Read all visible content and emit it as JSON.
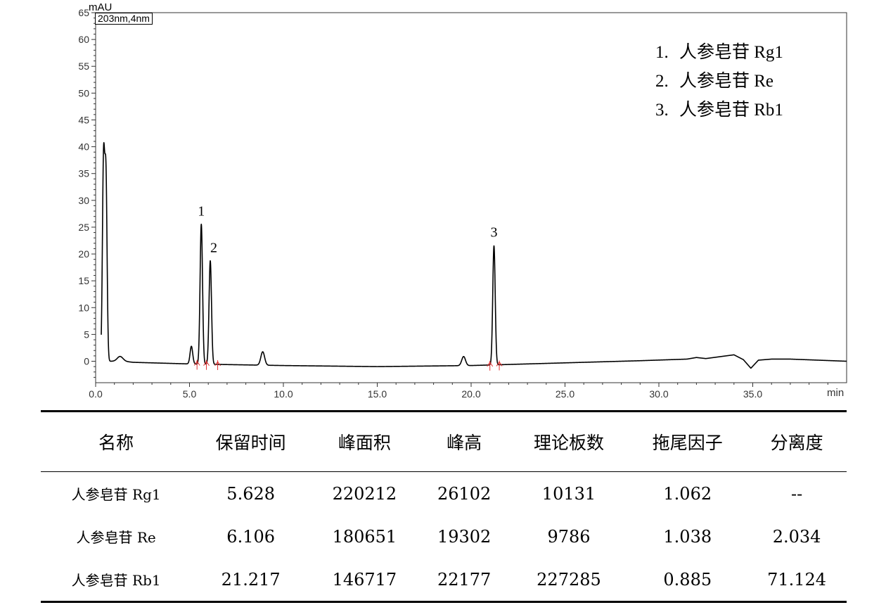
{
  "chart_data": {
    "type": "line",
    "detector": "203nm,4nm",
    "ylabel": "mAU",
    "xlabel": "min",
    "xlim": [
      0,
      40
    ],
    "ylim": [
      -4,
      65
    ],
    "x_ticks": [
      "0.0",
      "5.0",
      "10.0",
      "15.0",
      "20.0",
      "25.0",
      "30.0",
      "35.0"
    ],
    "x_tick_values": [
      0,
      5,
      10,
      15,
      20,
      25,
      30,
      35
    ],
    "y_ticks": [
      0,
      5,
      10,
      15,
      20,
      25,
      30,
      35,
      40,
      45,
      50,
      55,
      60,
      65
    ],
    "series": [
      {
        "baseline": [
          [
            0,
            0
          ],
          [
            1.5,
            0
          ],
          [
            2,
            -0.2
          ],
          [
            5,
            -0.5
          ],
          [
            10,
            -0.8
          ],
          [
            15,
            -1.0
          ],
          [
            20,
            -0.8
          ],
          [
            23,
            -0.5
          ],
          [
            26,
            -0.2
          ],
          [
            29,
            0.1
          ],
          [
            31.5,
            0.4
          ],
          [
            32,
            0.7
          ],
          [
            32.5,
            0.5
          ],
          [
            34,
            1.2
          ],
          [
            34.5,
            0.3
          ],
          [
            34.9,
            -1.3
          ],
          [
            35.3,
            0.2
          ],
          [
            36,
            0.4
          ],
          [
            37,
            0.4
          ],
          [
            38.5,
            0.2
          ],
          [
            40,
            0
          ]
        ],
        "peaks": [
          {
            "rt": 0.42,
            "height": 36.5,
            "width": 0.06
          },
          {
            "rt": 0.55,
            "height": 33.5,
            "width": 0.06
          },
          {
            "rt": 1.3,
            "height": 0.9,
            "width": 0.15
          },
          {
            "rt": 5.1,
            "height": 3.3,
            "width": 0.07
          },
          {
            "rt": 5.628,
            "height": 26.1,
            "width": 0.065
          },
          {
            "rt": 6.106,
            "height": 19.3,
            "width": 0.065
          },
          {
            "rt": 8.9,
            "height": 2.5,
            "width": 0.1
          },
          {
            "rt": 19.6,
            "height": 1.7,
            "width": 0.1
          },
          {
            "rt": 21.217,
            "height": 22.2,
            "width": 0.065
          }
        ]
      }
    ],
    "peak_labels": [
      {
        "label": "1",
        "x": 5.628,
        "y": 26.1
      },
      {
        "label": "2",
        "x": 6.106,
        "y": 19.3
      },
      {
        "label": "3",
        "x": 21.217,
        "y": 22.2
      }
    ],
    "integration_marks": [
      5.4,
      5.9,
      6.5,
      21.0,
      21.5
    ],
    "legend": [
      {
        "num": "1.",
        "name": "人参皂苷 Rg1"
      },
      {
        "num": "2.",
        "name": "人参皂苷 Re"
      },
      {
        "num": "3.",
        "name": "人参皂苷 Rb1"
      }
    ],
    "colors": {
      "trace": "#000000",
      "axis": "#333333",
      "marks": "#e53030"
    }
  },
  "table": {
    "headers": [
      "名称",
      "保留时间",
      "峰面积",
      "峰高",
      "理论板数",
      "拖尾因子",
      "分离度"
    ],
    "rows": [
      [
        "人参皂苷 Rg1",
        "5.628",
        "220212",
        "26102",
        "10131",
        "1.062",
        "--"
      ],
      [
        "人参皂苷 Re",
        "6.106",
        "180651",
        "19302",
        "9786",
        "1.038",
        "2.034"
      ],
      [
        "人参皂苷 Rb1",
        "21.217",
        "146717",
        "22177",
        "227285",
        "0.885",
        "71.124"
      ]
    ]
  }
}
